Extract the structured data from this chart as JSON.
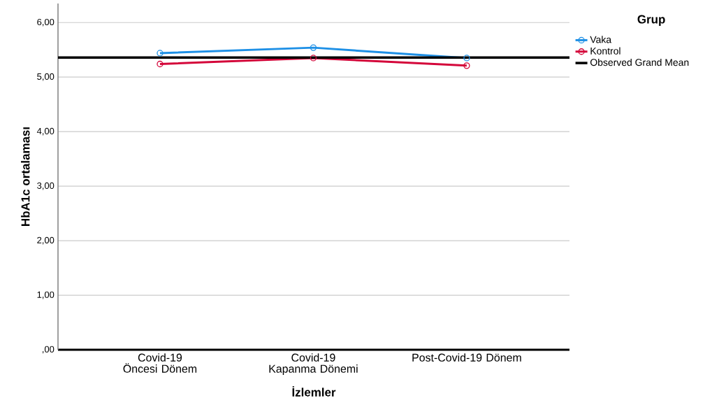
{
  "chart_data": {
    "type": "line",
    "xlabel": "İzlemler",
    "ylabel": "HbA1c ortalaması",
    "legend_title": "Grup",
    "categories": [
      "Covid-19 Öncesi Dönem",
      "Covid-19 Kapanma Dönemi",
      "Post-Covid-19 Dönem"
    ],
    "series": [
      {
        "name": "Vaka",
        "color": "#1e90e6",
        "values": [
          5.44,
          5.54,
          5.35
        ]
      },
      {
        "name": "Kontrol",
        "color": "#d4063a",
        "values": [
          5.24,
          5.35,
          5.21
        ]
      }
    ],
    "ref_lines": [
      {
        "axis": "y",
        "value": 5.36,
        "label": "Observed Grand Mean",
        "color": "#000000"
      }
    ],
    "ylim": [
      0,
      6.35
    ],
    "yticks": [
      {
        "value": 0,
        "label": ",00"
      },
      {
        "value": 1,
        "label": "1,00"
      },
      {
        "value": 2,
        "label": "2,00"
      },
      {
        "value": 3,
        "label": "3,00"
      },
      {
        "value": 4,
        "label": "4,00"
      },
      {
        "value": 5,
        "label": "5,00"
      },
      {
        "value": 6,
        "label": "6,00"
      }
    ],
    "grid": "y",
    "legend": "top right",
    "marker": "circle",
    "line_style": "solid"
  }
}
